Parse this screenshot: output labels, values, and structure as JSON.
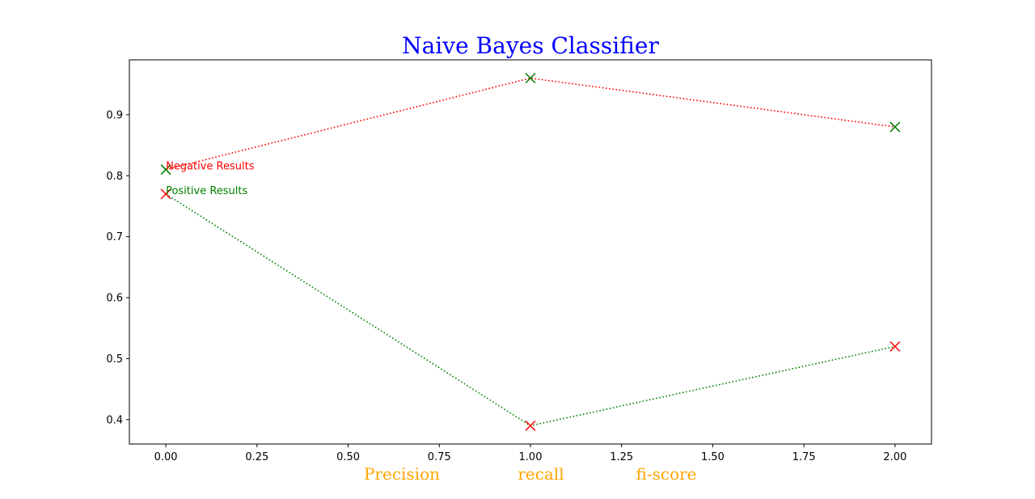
{
  "chart_data": {
    "type": "line",
    "title": "Naive Bayes Classifier",
    "title_color": "#0000ff",
    "xlabel_parts": [
      "Precision",
      "recall",
      "fi-score"
    ],
    "xlabel_color": "#ffa500",
    "xlim": [
      -0.1,
      2.1
    ],
    "ylim": [
      0.36,
      0.99
    ],
    "xticks": [
      0.0,
      0.25,
      0.5,
      0.75,
      1.0,
      1.25,
      1.5,
      1.75,
      2.0
    ],
    "xtick_labels": [
      "0.00",
      "0.25",
      "0.50",
      "0.75",
      "1.00",
      "1.25",
      "1.50",
      "1.75",
      "2.00"
    ],
    "yticks": [
      0.4,
      0.5,
      0.6,
      0.7,
      0.8,
      0.9
    ],
    "ytick_labels": [
      "0.4",
      "0.5",
      "0.6",
      "0.7",
      "0.8",
      "0.9"
    ],
    "grid": false,
    "x": [
      0,
      1,
      2
    ],
    "series": [
      {
        "values": [
          0.81,
          0.96,
          0.88
        ],
        "line_color": "#ff0000",
        "marker_color": "#008000",
        "line_style": "dotted",
        "marker": "x"
      },
      {
        "values": [
          0.77,
          0.39,
          0.52
        ],
        "line_color": "#008000",
        "marker_color": "#ff0000",
        "line_style": "dotted",
        "marker": "x"
      }
    ],
    "annotations": [
      {
        "text": "Negative Results",
        "x": 0,
        "y": 0.81,
        "color": "#ff0000"
      },
      {
        "text": "Positive Results",
        "x": 0,
        "y": 0.77,
        "color": "#008000"
      }
    ]
  }
}
